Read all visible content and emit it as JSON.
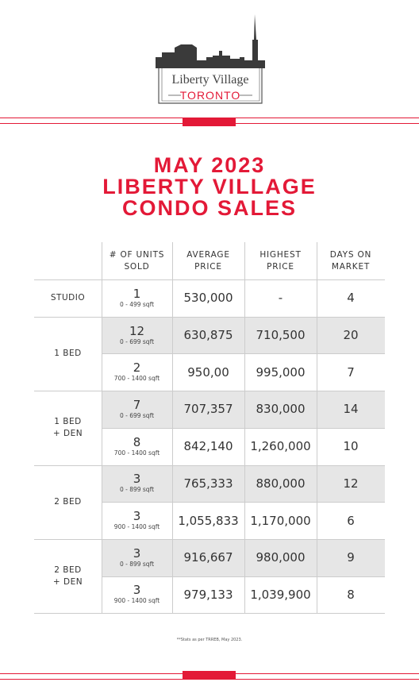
{
  "logo": {
    "name": "Liberty Village",
    "city": "TORONTO"
  },
  "title": [
    "MAY 2023",
    "LIBERTY VILLAGE",
    "CONDO SALES"
  ],
  "table": {
    "headers": [
      [
        "# OF UNITS",
        "SOLD"
      ],
      [
        "AVERAGE",
        "PRICE"
      ],
      [
        "HIGHEST",
        "PRICE"
      ],
      [
        "DAYS ON",
        "MARKET"
      ]
    ],
    "groups": [
      {
        "label": [
          "STUDIO"
        ],
        "rows": [
          {
            "units": "1",
            "size": "0 - 499 sqft",
            "avg": "530,000",
            "high": "-",
            "days": "4"
          }
        ]
      },
      {
        "label": [
          "1 BED"
        ],
        "rows": [
          {
            "units": "12",
            "size": "0 - 699 sqft",
            "avg": "630,875",
            "high": "710,500",
            "days": "20"
          },
          {
            "units": "2",
            "size": "700 - 1400 sqft",
            "avg": "950,00",
            "high": "995,000",
            "days": "7"
          }
        ]
      },
      {
        "label": [
          "1 BED",
          "+ DEN"
        ],
        "rows": [
          {
            "units": "7",
            "size": "0 - 699 sqft",
            "avg": "707,357",
            "high": "830,000",
            "days": "14"
          },
          {
            "units": "8",
            "size": "700 - 1400 sqft",
            "avg": "842,140",
            "high": "1,260,000",
            "days": "10"
          }
        ]
      },
      {
        "label": [
          "2 BED"
        ],
        "rows": [
          {
            "units": "3",
            "size": "0 - 899 sqft",
            "avg": "765,333",
            "high": "880,000",
            "days": "12"
          },
          {
            "units": "3",
            "size": "900 - 1400 sqft",
            "avg": "1,055,833",
            "high": "1,170,000",
            "days": "6"
          }
        ]
      },
      {
        "label": [
          "2 BED",
          "+ DEN"
        ],
        "rows": [
          {
            "units": "3",
            "size": "0 - 899 sqft",
            "avg": "916,667",
            "high": "980,000",
            "days": "9"
          },
          {
            "units": "3",
            "size": "900 - 1400 sqft",
            "avg": "979,133",
            "high": "1,039,900",
            "days": "8"
          }
        ]
      }
    ]
  },
  "footnote": "**Stats as per TRREB, May 2023."
}
